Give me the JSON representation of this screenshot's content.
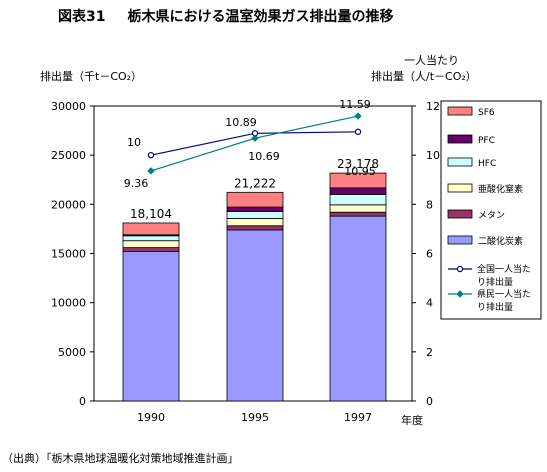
{
  "figure": {
    "number": "図表31",
    "title": "栃木県における温室効果ガス排出量の推移"
  },
  "axes": {
    "left_title": "排出量（千t－CO₂）",
    "right_title_line1": "一人当たり",
    "right_title_line2": "排出量（人/t－CO₂）",
    "x_title": "年度"
  },
  "source": "（出典）「栃木県地球温暖化対策地域推進計画」",
  "colors": {
    "co2": "#9999ff",
    "methane": "#993366",
    "n2o": "#ffffcc",
    "hfc": "#ccffff",
    "pfc": "#660066",
    "sf6": "#ff8080",
    "national_line": "#000080",
    "prefecture_line": "#008080"
  },
  "chart_data": {
    "type": "bar",
    "stacked": true,
    "categories": [
      "1990",
      "1995",
      "1997"
    ],
    "series": [
      {
        "name": "二酸化炭素",
        "key": "co2",
        "values": [
          15200,
          17400,
          18800
        ]
      },
      {
        "name": "メタン",
        "key": "methane",
        "values": [
          400,
          420,
          400
        ]
      },
      {
        "name": "亜酸化窒素",
        "key": "n2o",
        "values": [
          700,
          750,
          750
        ]
      },
      {
        "name": "HFC",
        "key": "hfc",
        "values": [
          500,
          700,
          1050
        ]
      },
      {
        "name": "PFC",
        "key": "pfc",
        "values": [
          104,
          452,
          678
        ]
      },
      {
        "name": "SF6",
        "key": "sf6",
        "values": [
          1200,
          1500,
          1500
        ]
      }
    ],
    "totals": [
      "18,104",
      "21,222",
      "23,178"
    ],
    "lines": [
      {
        "name": "全国一人当たり排出量",
        "key": "national",
        "values": [
          10,
          10.89,
          10.95
        ]
      },
      {
        "name": "県民一人当たり排出量",
        "key": "prefecture",
        "values": [
          9.36,
          10.69,
          11.59
        ]
      }
    ],
    "left_axis": {
      "min": 0,
      "max": 30000,
      "step": 5000,
      "ticks": [
        "0",
        "5000",
        "10000",
        "15000",
        "20000",
        "25000",
        "30000"
      ]
    },
    "right_axis": {
      "min": 0,
      "max": 12,
      "step": 2,
      "ticks": [
        "0",
        "2",
        "4",
        "6",
        "8",
        "10",
        "12"
      ]
    },
    "legend_position": "right"
  }
}
